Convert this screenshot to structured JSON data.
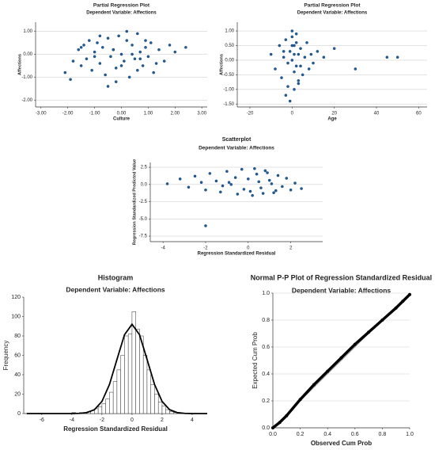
{
  "chart_data": [
    {
      "type": "scatter",
      "title": "Partial Regression Plot",
      "subtitle": "Dependent Variable: Affections",
      "xlabel": "Culture",
      "ylabel": "Affections",
      "color": "#1f5f9e",
      "grid": true,
      "xlim": [
        -3.2,
        3.2
      ],
      "xticks": [
        {
          "value": -3,
          "label": "-3.00"
        },
        {
          "value": -2,
          "label": "-2.00"
        },
        {
          "value": -1,
          "label": "-1.00"
        },
        {
          "value": 0,
          "label": "0.00"
        },
        {
          "value": 1,
          "label": "1.00"
        },
        {
          "value": 2,
          "label": "2.00"
        },
        {
          "value": 3,
          "label": "3.00"
        }
      ],
      "ylim": [
        -2.3,
        1.4
      ],
      "yticks": [
        {
          "value": 1,
          "label": "1.00"
        },
        {
          "value": 0,
          "label": "0.00"
        },
        {
          "value": -1,
          "label": "-1.00"
        },
        {
          "value": -2,
          "label": "-2.00"
        }
      ],
      "x": [
        -2.1,
        -1.9,
        -1.8,
        -1.6,
        -1.5,
        -1.4,
        -1.3,
        -1.2,
        -1.1,
        -1.0,
        -0.9,
        -0.8,
        -0.7,
        -0.6,
        -0.5,
        -0.4,
        -0.3,
        -0.2,
        -0.1,
        0,
        0.1,
        0.2,
        0.3,
        0.4,
        0.5,
        0.6,
        0.7,
        0.8,
        0.9,
        1.0,
        1.1,
        1.2,
        1.4,
        1.6,
        1.8,
        2.0,
        2.4,
        -0.5,
        0.2,
        0.6,
        -1.0,
        0.9,
        -0.2,
        0.4,
        -0.8,
        1.3,
        0.0,
        -1.5,
        0.7,
        -0.3
      ],
      "y": [
        -0.8,
        -1.1,
        -0.3,
        0.2,
        -0.5,
        0.4,
        -0.2,
        0.6,
        -0.7,
        0.1,
        0.5,
        -0.4,
        0.3,
        -0.9,
        0.7,
        -0.1,
        0.2,
        -0.6,
        0.8,
        0.0,
        -0.3,
        0.6,
        -1.0,
        0.4,
        -0.2,
        0.9,
        0.1,
        -0.5,
        0.3,
        -0.1,
        0.5,
        -0.8,
        0.2,
        -0.3,
        0.4,
        0.1,
        0.3,
        -1.4,
        1.0,
        -0.7,
        -0.1,
        0.6,
        -1.2,
        0.0,
        0.8,
        -0.4,
        -0.5,
        0.3,
        -0.2,
        0.2
      ]
    },
    {
      "type": "scatter",
      "title": "Partial Regression Plot",
      "subtitle": "Dependent Variable: Affections",
      "xlabel": "Age",
      "ylabel": "Affections",
      "color": "#1f5f9e",
      "grid": true,
      "xlim": [
        -26,
        64
      ],
      "xticks": [
        -20,
        0,
        20,
        40,
        60
      ],
      "ylim": [
        -1.6,
        1.3
      ],
      "yticks": [
        {
          "value": 1,
          "label": "1.00"
        },
        {
          "value": 0.5,
          "label": "0.50"
        },
        {
          "value": 0,
          "label": "0.00"
        },
        {
          "value": -0.5,
          "label": "-0.50"
        },
        {
          "value": -1,
          "label": "-1.00"
        },
        {
          "value": -1.5,
          "label": "-1.50"
        }
      ],
      "x": [
        -10,
        -8,
        -6,
        -5,
        -4,
        -3,
        -2,
        -1,
        0,
        0,
        1,
        1,
        2,
        2,
        3,
        3,
        4,
        5,
        6,
        7,
        8,
        9,
        10,
        12,
        15,
        20,
        30,
        45,
        50,
        -3,
        -1,
        0,
        1,
        2,
        -2,
        3,
        0,
        1,
        -4,
        4
      ],
      "y": [
        0.2,
        -0.3,
        0.5,
        -0.6,
        0.1,
        0.7,
        -0.9,
        0.3,
        0.0,
        0.8,
        -0.4,
        0.5,
        -0.2,
        0.9,
        -0.7,
        0.2,
        0.4,
        -0.5,
        0.1,
        0.6,
        -0.3,
        0.2,
        -0.1,
        0.3,
        0.1,
        0.4,
        -0.3,
        0.1,
        0.1,
        -1.2,
        -1.4,
        1.0,
        -1.0,
        0.6,
        -0.1,
        -0.8,
        0.5,
        0.2,
        0.3,
        -0.2
      ]
    },
    {
      "type": "scatter",
      "title": "Scatterplot",
      "subtitle": "Dependent Variable: Affections",
      "xlabel": "Regression Standardized Residual",
      "ylabel": "Regression Standardized Predicted Value",
      "color": "#1f5f9e",
      "grid": true,
      "xlim": [
        -4.6,
        3.5
      ],
      "xticks": [
        -4,
        -2,
        0,
        2
      ],
      "ylim": [
        -8.3,
        3.2
      ],
      "yticks": [
        2.5,
        {
          "value": 0,
          "label": "0.0"
        },
        -2.5,
        {
          "value": -5,
          "label": "-5.0"
        },
        -7.5
      ],
      "x": [
        -3.8,
        -3.2,
        -2.8,
        -2.5,
        -2.2,
        -2.0,
        -1.8,
        -1.5,
        -1.3,
        -1.0,
        -0.8,
        -0.5,
        -0.3,
        0,
        0.2,
        0.4,
        0.6,
        0.8,
        1.0,
        1.2,
        1.4,
        1.6,
        1.8,
        2.0,
        2.2,
        2.5,
        -1.2,
        -0.6,
        0.1,
        0.5,
        0.9,
        1.3,
        -0.2,
        0.3,
        0.7,
        -0.9,
        1.1,
        -2.0
      ],
      "y": [
        0.1,
        0.8,
        -0.4,
        1.2,
        0.3,
        -0.8,
        1.6,
        0.5,
        -1.1,
        1.9,
        0.0,
        -1.4,
        2.2,
        0.8,
        -1.6,
        1.5,
        -0.5,
        2.0,
        0.6,
        -1.2,
        1.3,
        -0.3,
        0.9,
        -0.8,
        0.2,
        -0.6,
        -0.2,
        1.0,
        -1.0,
        0.4,
        1.7,
        -0.9,
        -0.7,
        2.3,
        -1.3,
        0.3,
        0.1,
        -6.0
      ]
    },
    {
      "type": "histogram",
      "title": "Histogram",
      "subtitle": "Dependent Variable: Affections",
      "xlabel": "Regression Standardized Residual",
      "ylabel": "Frequency",
      "color": "#ffffff",
      "grid": false,
      "xlim": [
        -7.2,
        5.0
      ],
      "xticks": [
        -6,
        -4,
        -2,
        0,
        2,
        4
      ],
      "ylim": [
        0,
        120
      ],
      "yticks": [
        0,
        20,
        40,
        60,
        80,
        100,
        120
      ],
      "bins": [
        -4,
        -3.75,
        -3.5,
        -3.25,
        -3,
        -2.75,
        -2.5,
        -2.25,
        -2,
        -1.75,
        -1.5,
        -1.25,
        -1,
        -0.75,
        -0.5,
        -0.25,
        0,
        0.25,
        0.5,
        0.75,
        1,
        1.25,
        1.5,
        1.75,
        2,
        2.25,
        2.5,
        2.75,
        3
      ],
      "values": [
        1,
        0,
        1,
        1,
        2,
        3,
        5,
        7,
        10,
        15,
        22,
        33,
        45,
        60,
        80,
        82,
        105,
        87,
        80,
        60,
        45,
        30,
        20,
        12,
        8,
        4,
        2,
        1
      ],
      "curve": {
        "x": [
          -7,
          -6.5,
          -6,
          -5.5,
          -5,
          -4.5,
          -4,
          -3.5,
          -3,
          -2.5,
          -2,
          -1.5,
          -1,
          -0.5,
          0,
          0.5,
          1,
          1.5,
          2,
          2.5,
          3,
          3.5,
          4,
          4.5,
          5
        ],
        "y": [
          0,
          0,
          0,
          0,
          0,
          0,
          0,
          0.2,
          1.0,
          4.0,
          12.5,
          29.9,
          55.8,
          81.2,
          92,
          81.2,
          55.8,
          29.9,
          12.5,
          4.0,
          1.0,
          0.2,
          0,
          0,
          0
        ]
      }
    },
    {
      "type": "pp",
      "title": "Normal P-P Plot of Regression Standardized Residual",
      "subtitle": "Dependent Variable: Affections",
      "xlabel": "Observed Cum Prob",
      "ylabel": "Expected Cum Prob",
      "color": "#000000",
      "grid": true,
      "xlim": [
        0,
        1
      ],
      "xticks": [
        {
          "value": 0,
          "label": "0.0"
        },
        0.2,
        0.4,
        0.6,
        0.8,
        {
          "value": 1,
          "label": "1.0"
        }
      ],
      "ylim": [
        0,
        1
      ],
      "yticks": [
        {
          "value": 0,
          "label": "0.0"
        },
        0.2,
        0.4,
        0.6,
        0.8,
        {
          "value": 1,
          "label": "1.0"
        }
      ],
      "x": [
        0,
        0.05,
        0.1,
        0.2,
        0.3,
        0.4,
        0.5,
        0.6,
        0.7,
        0.8,
        0.9,
        0.95,
        1
      ],
      "y": [
        0,
        0.04,
        0.09,
        0.21,
        0.32,
        0.42,
        0.52,
        0.62,
        0.71,
        0.8,
        0.89,
        0.94,
        0.99
      ]
    }
  ]
}
